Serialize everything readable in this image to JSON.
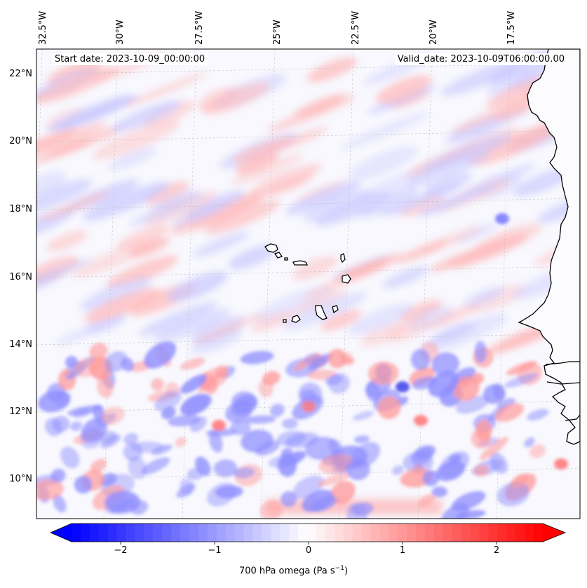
{
  "map": {
    "start_label": "Start date: 2023-10-09_00:00:00",
    "valid_label": "Valid_date: 2023-10-09T06:00:00.00",
    "lon_labels": [
      "32.5°W",
      "30°W",
      "27.5°W",
      "25°W",
      "22.5°W",
      "20°W",
      "17.5°W"
    ],
    "lat_labels": [
      "22°N",
      "20°N",
      "18°N",
      "16°N",
      "14°N",
      "12°N",
      "10°N"
    ],
    "field": "700 hPa omega",
    "colormap": "bwr",
    "contour_levels": "filled, blue (negative) to red (positive)",
    "coastline_color": "#000000",
    "gridlines": true
  },
  "colorbar": {
    "label_main": "700 hPa omega (Pa s",
    "label_exp": "−1",
    "label_end": ")",
    "range": [
      -2.6,
      2.6
    ],
    "ticks": [
      "−2",
      "−1",
      "0",
      "1",
      "2"
    ],
    "extend": "both",
    "colors": {
      "min": "#0000ff",
      "mid": "#ffffff",
      "max": "#ff0000"
    }
  }
}
